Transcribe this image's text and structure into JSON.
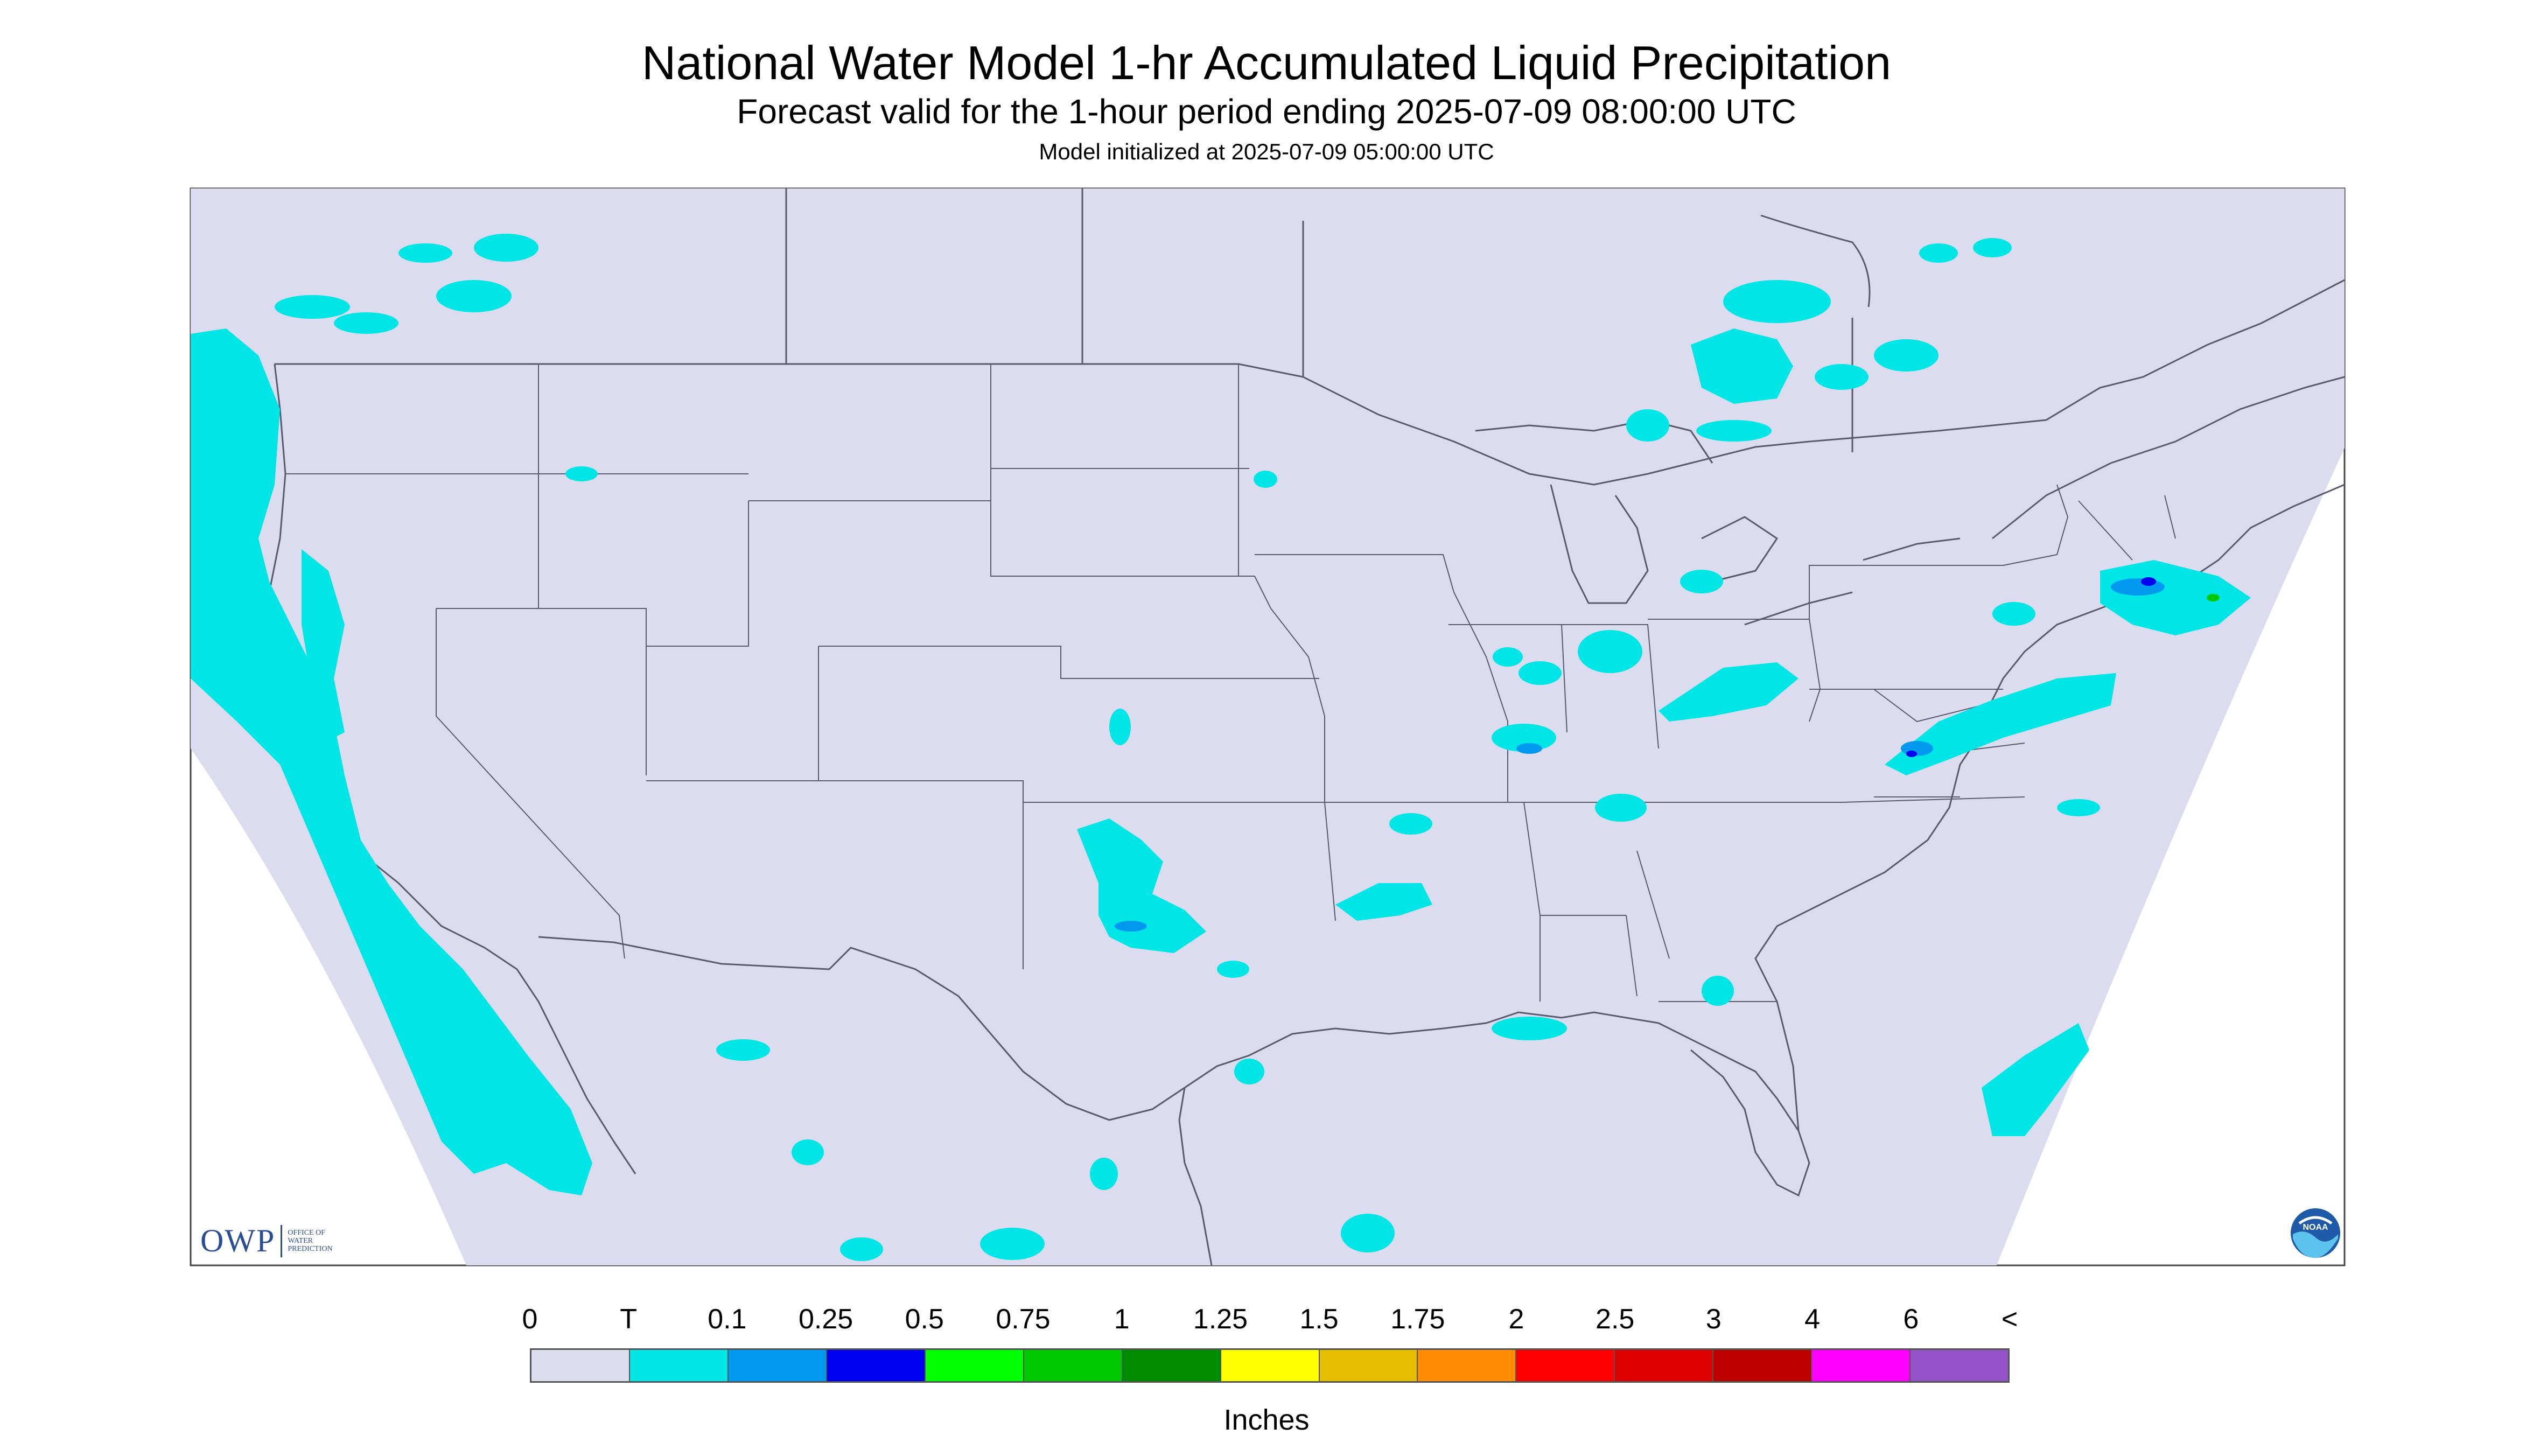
{
  "titles": {
    "main": "National Water Model 1-hr Accumulated Liquid Precipitation",
    "sub": "Forecast valid for the 1-hour period ending 2025-07-09 08:00:00 UTC",
    "init": "Model initialized at 2025-07-09 05:00:00 UTC"
  },
  "legend": {
    "labels": [
      "0",
      "T",
      "0.1",
      "0.25",
      "0.5",
      "0.75",
      "1",
      "1.25",
      "1.5",
      "1.75",
      "2",
      "2.5",
      "3",
      "4",
      "6",
      "<"
    ],
    "colors": [
      "#dcdcf0",
      "#00e6e6",
      "#0099f0",
      "#0000f0",
      "#00ff00",
      "#00c800",
      "#008c00",
      "#ffff00",
      "#e6be00",
      "#ff8c00",
      "#ff0000",
      "#dc0000",
      "#be0000",
      "#ff00ff",
      "#9650c8"
    ],
    "units": "Inches"
  },
  "colors": {
    "domain_fill": "#dcdcf0",
    "boundary": "#5a5a6e",
    "trace_precip": "#00e6e6",
    "light_precip": "#0099f0",
    "moderate_precip": "#0000f0",
    "heavy_precip": "#00c800"
  },
  "logos": {
    "owp_mark": "OWP",
    "owp_text": "OFFICE OF WATER PREDICTION",
    "noaa_text": "NOAA"
  }
}
